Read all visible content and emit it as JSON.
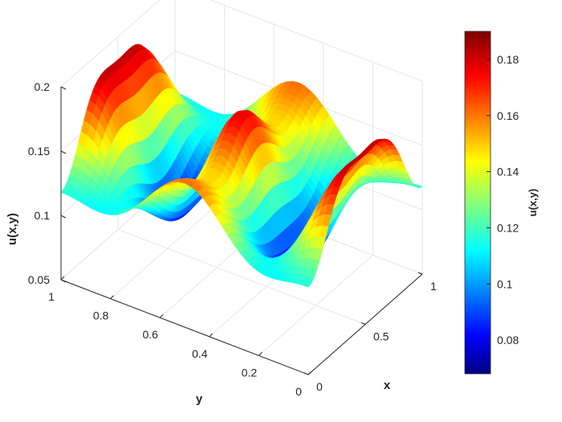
{
  "chart_data": {
    "type": "surface",
    "title": "",
    "xlabel": "x",
    "ylabel": "y",
    "zlabel": "u(x,y)",
    "xlim": [
      0,
      1
    ],
    "ylim": [
      0,
      1
    ],
    "zlim": [
      0.05,
      0.2
    ],
    "x_ticks": [
      "0",
      "0.5",
      "1"
    ],
    "y_ticks": [
      "0",
      "0.2",
      "0.4",
      "0.6",
      "0.8",
      "1"
    ],
    "z_ticks": [
      "0.05",
      "0.1",
      "0.15",
      "0.2"
    ],
    "colormap": "jet",
    "colorbar": {
      "label": "u(x,y)",
      "range": [
        0.068,
        0.19
      ],
      "ticks": [
        "0.08",
        "0.1",
        "0.12",
        "0.14",
        "0.16",
        "0.18"
      ]
    },
    "surface_samples": {
      "x": [
        0,
        0.25,
        0.5,
        0.75,
        1
      ],
      "y": [
        0,
        0.25,
        0.5,
        0.75,
        1
      ],
      "z": [
        [
          0.15,
          0.17,
          0.13,
          0.17,
          0.15
        ],
        [
          0.11,
          0.07,
          0.12,
          0.07,
          0.11
        ],
        [
          0.15,
          0.17,
          0.19,
          0.17,
          0.15
        ],
        [
          0.11,
          0.07,
          0.12,
          0.07,
          0.11
        ],
        [
          0.15,
          0.17,
          0.13,
          0.17,
          0.15
        ]
      ]
    },
    "grid": true,
    "view": "3d-default"
  }
}
